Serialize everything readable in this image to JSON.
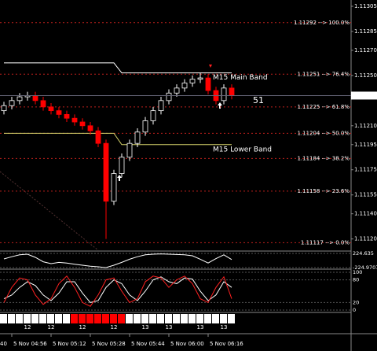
{
  "chart_data": {
    "type": "candlestick",
    "open": [
      1.11222,
      1.11226,
      1.1123,
      1.11233,
      1.11234,
      1.1123,
      1.11225,
      1.11222,
      1.11219,
      1.11216,
      1.11213,
      1.1121,
      1.11206,
      1.11196,
      1.1115,
      1.11172,
      1.11185,
      1.11196,
      1.11205,
      1.11214,
      1.11222,
      1.1123,
      1.11236,
      1.1124,
      1.11244,
      1.11247,
      1.11248,
      1.11238,
      1.1123,
      1.1124
    ],
    "high": [
      1.11229,
      1.11233,
      1.11236,
      1.11237,
      1.11237,
      1.11233,
      1.11228,
      1.11225,
      1.11222,
      1.11219,
      1.11216,
      1.11213,
      1.11209,
      1.11199,
      1.11175,
      1.11188,
      1.11199,
      1.11208,
      1.11217,
      1.11225,
      1.11233,
      1.11239,
      1.11243,
      1.11247,
      1.1125,
      1.11252,
      1.11251,
      1.11241,
      1.11243,
      1.11243
    ],
    "low": [
      1.11219,
      1.11223,
      1.11227,
      1.1123,
      1.11227,
      1.11222,
      1.11219,
      1.11216,
      1.11213,
      1.1121,
      1.11207,
      1.11203,
      1.11193,
      1.1112,
      1.11147,
      1.11169,
      1.11182,
      1.11193,
      1.11202,
      1.11211,
      1.11219,
      1.11227,
      1.11233,
      1.11237,
      1.11241,
      1.11244,
      1.11235,
      1.11227,
      1.11227,
      1.11231
    ],
    "close": [
      1.11226,
      1.1123,
      1.11233,
      1.11234,
      1.1123,
      1.11225,
      1.11222,
      1.11219,
      1.11216,
      1.11213,
      1.1121,
      1.11206,
      1.11196,
      1.1115,
      1.11172,
      1.11185,
      1.11196,
      1.11205,
      1.11214,
      1.11222,
      1.1123,
      1.11236,
      1.1124,
      1.11244,
      1.11247,
      1.11248,
      1.11238,
      1.1123,
      1.1124,
      1.11234
    ],
    "up_color": "#ffffff",
    "down_color": "#ff0000",
    "ylim": [
      1.11111,
      1.1131
    ],
    "yticks": [
      1.11305,
      1.11285,
      {
        "value": 1.1127,
        "label": "1.11270"
      },
      {
        "value": 1.1125,
        "label": "1.11250"
      },
      {
        "value": 1.1121,
        "label": "1.11210"
      },
      1.11195,
      1.11175,
      1.11155,
      {
        "value": 1.1114,
        "label": "1.11140"
      },
      {
        "value": 1.1112,
        "label": "1.11120"
      }
    ],
    "current_price": 1.11234,
    "levels": [
      {
        "value": 1.11292,
        "label": "1.11292 --> 100.0%"
      },
      {
        "value": 1.11251,
        "label": "1.11251 --> 76.4%"
      },
      {
        "value": 1.11225,
        "label": "1.11225 --> 61.8%"
      },
      {
        "value": 1.11204,
        "label": "1.11204 --> 50.0%"
      },
      {
        "value": 1.11184,
        "label": "1.11184 --> 38.2%"
      },
      {
        "value": 1.11158,
        "label": "1.11158 --> 23.6%"
      },
      {
        "value": 1.11117,
        "label": "1.11117 --> 0.0%"
      }
    ],
    "level_color": "#c0201c",
    "series": [
      {
        "name": "M15 Main Band",
        "color": "#ffffff",
        "values": [
          1.1126,
          1.1126,
          1.1126,
          1.1126,
          1.1126,
          1.1126,
          1.1126,
          1.1126,
          1.1126,
          1.1126,
          1.1126,
          1.1126,
          1.1126,
          1.1126,
          1.1126,
          1.11252,
          1.11252,
          1.11252,
          1.11252,
          1.11252,
          1.11252,
          1.11252,
          1.11252,
          1.11252,
          1.11252,
          1.11252,
          1.11252,
          1.11252,
          1.11252,
          1.11252
        ]
      },
      {
        "name": "M15 Lower Band",
        "color": "#d6d36b",
        "values": [
          1.11204,
          1.11204,
          1.11204,
          1.11204,
          1.11204,
          1.11204,
          1.11204,
          1.11204,
          1.11204,
          1.11204,
          1.11204,
          1.11204,
          1.11204,
          1.11204,
          1.11204,
          1.11195,
          1.11195,
          1.11195,
          1.11195,
          1.11195,
          1.11195,
          1.11195,
          1.11195,
          1.11195,
          1.11195,
          1.11195,
          1.11195,
          1.11195,
          1.11195,
          1.11195
        ]
      }
    ],
    "annotation": "51",
    "annotation_color": "#2a3bff",
    "time_labels": [
      null,
      "5 Nov 04:56",
      null,
      null,
      null,
      null,
      "5 Nov 05:12",
      null,
      null,
      null,
      null,
      "5 Nov 05:28",
      null,
      null,
      null,
      null,
      "5 Nov 05:44",
      null,
      null,
      null,
      null,
      "5 Nov 06:00",
      null,
      null,
      null,
      null,
      "5 Nov 06:16",
      null,
      null,
      null
    ],
    "time_label_cut": "40",
    "indicators": [
      {
        "type": "line",
        "ylim": [
          -224.9707,
          224.635
        ],
        "yticks": [
          224.635,
          -224.9707
        ],
        "series": [
          {
            "color": "#ffffff",
            "values": [
              50,
              120,
              180,
              200,
              100,
              -40,
              -100,
              -60,
              -80,
              -120,
              -150,
              -180,
              -200,
              -224,
              -150,
              -60,
              40,
              120,
              180,
              200,
              210,
              200,
              190,
              180,
              150,
              40,
              -80,
              60,
              180,
              30
            ]
          }
        ]
      },
      {
        "type": "line",
        "ylim": [
          0,
          100
        ],
        "yticks": [
          100,
          80,
          20,
          0
        ],
        "series": [
          {
            "color": "#ffffff",
            "values": [
              30,
              40,
              60,
              75,
              65,
              40,
              25,
              45,
              75,
              75,
              45,
              20,
              25,
              60,
              80,
              70,
              40,
              25,
              50,
              80,
              88,
              75,
              70,
              85,
              82,
              50,
              25,
              40,
              75,
              60
            ]
          },
          {
            "color": "#ff2020",
            "values": [
              20,
              60,
              85,
              80,
              40,
              15,
              30,
              70,
              90,
              60,
              20,
              10,
              40,
              80,
              85,
              50,
              20,
              30,
              75,
              90,
              85,
              60,
              80,
              90,
              70,
              30,
              20,
              60,
              88,
              30
            ]
          }
        ]
      },
      {
        "type": "heat",
        "colors": [
          "#ffffff",
          "#ffffff",
          "#ffffff",
          "#ffffff",
          "#ffffff",
          "#ffffff",
          "#ffffff",
          "#ffffff",
          "#ffffff",
          "#ff0000",
          "#ff0000",
          "#ff0000",
          "#ff0000",
          "#ff0000",
          "#ff0000",
          "#ff0000",
          "#ffffff",
          "#ffffff",
          "#ffffff",
          "#ffffff",
          "#ffffff",
          "#ffffff",
          "#ffffff",
          "#ffffff",
          "#ffffff",
          "#ffffff",
          "#ffffff",
          "#ffffff",
          "#ffffff",
          "#ffffff"
        ],
        "categories": [
          null,
          null,
          null,
          "12",
          null,
          null,
          "12",
          null,
          null,
          null,
          "12",
          null,
          null,
          null,
          "12",
          null,
          null,
          null,
          "13",
          null,
          null,
          "13",
          null,
          null,
          null,
          "13",
          null,
          null,
          "13",
          null
        ]
      }
    ]
  }
}
